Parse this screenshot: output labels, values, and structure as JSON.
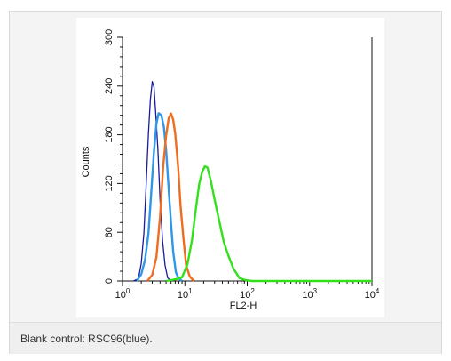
{
  "chart_data": {
    "type": "line",
    "xlabel": "FL2-H",
    "ylabel": "Counts",
    "xscale": "log",
    "xlim": [
      1,
      10000
    ],
    "ylim": [
      0,
      300
    ],
    "x_ticks": [
      {
        "base": "10",
        "exp": "0"
      },
      {
        "base": "10",
        "exp": "1"
      },
      {
        "base": "10",
        "exp": "2"
      },
      {
        "base": "10",
        "exp": "3"
      },
      {
        "base": "10",
        "exp": "4"
      }
    ],
    "y_ticks": [
      "0",
      "60",
      "120",
      "180",
      "240",
      "300"
    ],
    "series": [
      {
        "color": "#1a1a9e",
        "points": [
          [
            1.5,
            0
          ],
          [
            1.8,
            4
          ],
          [
            2.0,
            20
          ],
          [
            2.2,
            60
          ],
          [
            2.4,
            120
          ],
          [
            2.6,
            180
          ],
          [
            2.8,
            225
          ],
          [
            3.0,
            245
          ],
          [
            3.2,
            238
          ],
          [
            3.4,
            210
          ],
          [
            3.7,
            160
          ],
          [
            4.0,
            100
          ],
          [
            4.4,
            50
          ],
          [
            4.8,
            18
          ],
          [
            5.3,
            5
          ],
          [
            6.0,
            0
          ]
        ]
      },
      {
        "color": "#2f97e8",
        "points": [
          [
            1.7,
            0
          ],
          [
            2.0,
            8
          ],
          [
            2.3,
            25
          ],
          [
            2.6,
            60
          ],
          [
            2.9,
            110
          ],
          [
            3.2,
            160
          ],
          [
            3.5,
            195
          ],
          [
            3.8,
            205
          ],
          [
            4.2,
            205
          ],
          [
            4.6,
            190
          ],
          [
            5.0,
            160
          ],
          [
            5.5,
            115
          ],
          [
            6.0,
            70
          ],
          [
            6.5,
            35
          ],
          [
            7.2,
            12
          ],
          [
            8.0,
            3
          ],
          [
            9.0,
            0
          ]
        ]
      },
      {
        "color": "#f06d1e",
        "points": [
          [
            2.5,
            0
          ],
          [
            3.0,
            6
          ],
          [
            3.5,
            30
          ],
          [
            4.0,
            80
          ],
          [
            4.5,
            140
          ],
          [
            5.0,
            180
          ],
          [
            5.5,
            200
          ],
          [
            6.0,
            205
          ],
          [
            6.5,
            200
          ],
          [
            7.0,
            180
          ],
          [
            7.8,
            140
          ],
          [
            8.5,
            95
          ],
          [
            9.5,
            50
          ],
          [
            10.5,
            20
          ],
          [
            12.0,
            6
          ],
          [
            14.0,
            0
          ]
        ]
      },
      {
        "color": "#33e01c",
        "points": [
          [
            5,
            0
          ],
          [
            7,
            2
          ],
          [
            9,
            6
          ],
          [
            11,
            20
          ],
          [
            13,
            50
          ],
          [
            15,
            90
          ],
          [
            17,
            118
          ],
          [
            19,
            135
          ],
          [
            21,
            142
          ],
          [
            23,
            138
          ],
          [
            26,
            125
          ],
          [
            30,
            100
          ],
          [
            35,
            75
          ],
          [
            42,
            50
          ],
          [
            50,
            30
          ],
          [
            60,
            15
          ],
          [
            75,
            5
          ],
          [
            95,
            1
          ],
          [
            120,
            0
          ],
          [
            10000,
            0
          ]
        ]
      }
    ]
  },
  "caption": "Blank control: RSC96(blue)."
}
